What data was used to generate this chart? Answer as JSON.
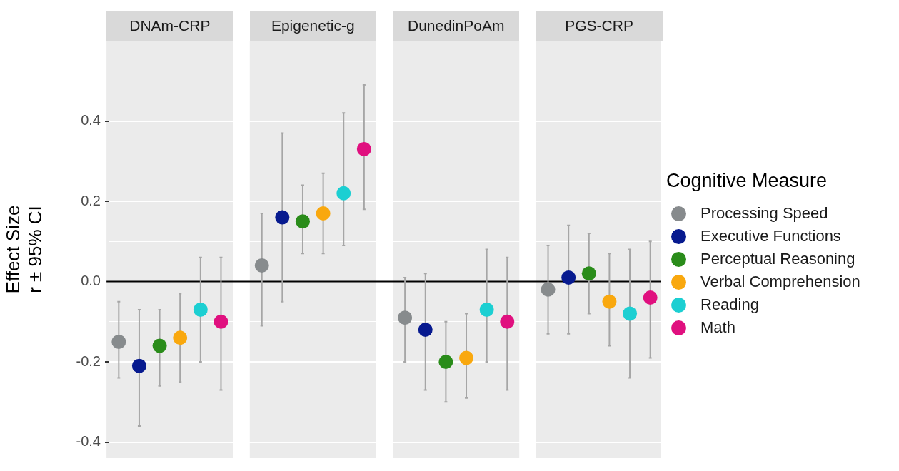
{
  "chart_data": {
    "type": "scatter",
    "ylabel": "Effect Size\nr ± 95% CI",
    "legend_title": "Cognitive Measure",
    "legend": "right",
    "annotations": [
      "DNAm-CRP",
      "Epigenetic-g",
      "DunedinPoAm",
      "PGS-CRP"
    ],
    "categories": [
      null,
      null,
      null,
      null,
      null,
      null,
      null,
      null,
      null,
      null,
      null,
      null,
      null,
      null,
      null,
      null,
      null,
      null,
      null,
      null,
      null,
      null,
      null,
      null,
      null,
      null,
      null
    ],
    "ylim": [
      -0.44,
      0.6
    ],
    "yticks": [
      {
        "value": -0.4,
        "label": "-0.4"
      },
      {
        "value": -0.3,
        "label": null
      },
      {
        "value": -0.2,
        "label": "-0.2"
      },
      {
        "value": -0.1,
        "label": null
      },
      {
        "value": 0,
        "label": "0.0"
      },
      {
        "value": 0.1,
        "label": null
      },
      {
        "value": 0.2,
        "label": "0.2"
      },
      {
        "value": 0.3,
        "label": null
      },
      {
        "value": 0.4,
        "label": "0.4"
      },
      {
        "value": 0.5,
        "label": null
      }
    ],
    "grid": "y",
    "tick_labels": "y",
    "marker": "circle",
    "ref_lines": [
      {
        "axis": "y",
        "value": 0,
        "color": "#000000"
      }
    ],
    "series": [
      {
        "name": "Processing Speed",
        "color": "#878b8d",
        "values": [
          -0.15,
          null,
          null,
          null,
          null,
          null,
          null,
          0.04,
          null,
          null,
          null,
          null,
          null,
          null,
          -0.09,
          null,
          null,
          null,
          null,
          null,
          null,
          -0.02,
          null,
          null,
          null,
          null,
          null
        ],
        "errors": [
          [
            -0.24,
            -0.05
          ],
          null,
          null,
          null,
          null,
          null,
          null,
          [
            -0.11,
            0.17
          ],
          null,
          null,
          null,
          null,
          null,
          null,
          [
            -0.2,
            0.01
          ],
          null,
          null,
          null,
          null,
          null,
          null,
          [
            -0.13,
            0.09
          ],
          null,
          null,
          null,
          null,
          null
        ]
      },
      {
        "name": "Executive Functions",
        "color": "#071a8f",
        "values": [
          null,
          -0.21,
          null,
          null,
          null,
          null,
          null,
          null,
          0.16,
          null,
          null,
          null,
          null,
          null,
          null,
          -0.12,
          null,
          null,
          null,
          null,
          null,
          null,
          0.01,
          null,
          null,
          null,
          null
        ],
        "errors": [
          null,
          [
            -0.36,
            -0.07
          ],
          null,
          null,
          null,
          null,
          null,
          null,
          [
            -0.05,
            0.37
          ],
          null,
          null,
          null,
          null,
          null,
          null,
          [
            -0.27,
            0.02
          ],
          null,
          null,
          null,
          null,
          null,
          null,
          [
            -0.13,
            0.14
          ],
          null,
          null,
          null,
          null
        ]
      },
      {
        "name": "Perceptual Reasoning",
        "color": "#2a8c1a",
        "values": [
          null,
          null,
          -0.16,
          null,
          null,
          null,
          null,
          null,
          null,
          0.15,
          null,
          null,
          null,
          null,
          null,
          null,
          -0.2,
          null,
          null,
          null,
          null,
          null,
          null,
          0.02,
          null,
          null,
          null
        ],
        "errors": [
          null,
          null,
          [
            -0.26,
            -0.07
          ],
          null,
          null,
          null,
          null,
          null,
          null,
          [
            0.07,
            0.24
          ],
          null,
          null,
          null,
          null,
          null,
          null,
          [
            -0.3,
            -0.1
          ],
          null,
          null,
          null,
          null,
          null,
          null,
          [
            -0.08,
            0.12
          ],
          null,
          null,
          null
        ]
      },
      {
        "name": "Verbal Comprehension",
        "color": "#f9a80e",
        "values": [
          null,
          null,
          null,
          -0.14,
          null,
          null,
          null,
          null,
          null,
          null,
          0.17,
          null,
          null,
          null,
          null,
          null,
          null,
          -0.19,
          null,
          null,
          null,
          null,
          null,
          null,
          -0.05,
          null,
          null
        ],
        "errors": [
          null,
          null,
          null,
          [
            -0.25,
            -0.03
          ],
          null,
          null,
          null,
          null,
          null,
          null,
          [
            0.07,
            0.27
          ],
          null,
          null,
          null,
          null,
          null,
          null,
          [
            -0.29,
            -0.08
          ],
          null,
          null,
          null,
          null,
          null,
          null,
          [
            -0.16,
            0.07
          ],
          null,
          null
        ]
      },
      {
        "name": "Reading",
        "color": "#1ccfd2",
        "values": [
          null,
          null,
          null,
          null,
          -0.07,
          null,
          null,
          null,
          null,
          null,
          null,
          0.22,
          null,
          null,
          null,
          null,
          null,
          null,
          -0.07,
          null,
          null,
          null,
          null,
          null,
          null,
          -0.08,
          null
        ],
        "errors": [
          null,
          null,
          null,
          null,
          [
            -0.2,
            0.06
          ],
          null,
          null,
          null,
          null,
          null,
          null,
          [
            0.09,
            0.42
          ],
          null,
          null,
          null,
          null,
          null,
          null,
          [
            -0.2,
            0.08
          ],
          null,
          null,
          null,
          null,
          null,
          null,
          [
            -0.24,
            0.08
          ],
          null
        ]
      },
      {
        "name": "Math",
        "color": "#e0107f",
        "values": [
          null,
          null,
          null,
          null,
          null,
          -0.1,
          null,
          null,
          null,
          null,
          null,
          null,
          0.33,
          null,
          null,
          null,
          null,
          null,
          null,
          -0.1,
          null,
          null,
          null,
          null,
          null,
          null,
          -0.04
        ],
        "errors": [
          null,
          null,
          null,
          null,
          null,
          [
            -0.27,
            0.06
          ],
          null,
          null,
          null,
          null,
          null,
          null,
          [
            0.18,
            0.49
          ],
          null,
          null,
          null,
          null,
          null,
          null,
          [
            -0.27,
            0.06
          ],
          null,
          null,
          null,
          null,
          null,
          null,
          [
            -0.19,
            0.1
          ]
        ]
      }
    ]
  }
}
